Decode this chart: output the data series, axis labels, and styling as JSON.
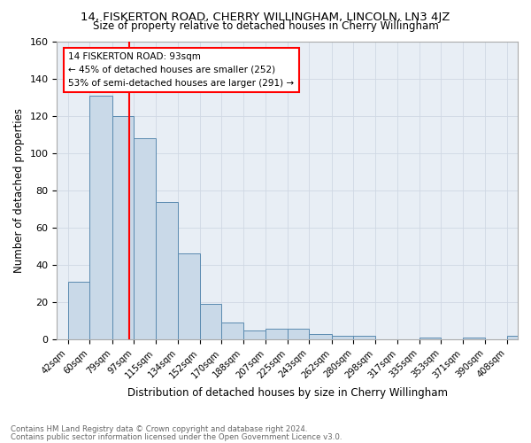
{
  "title": "14, FISKERTON ROAD, CHERRY WILLINGHAM, LINCOLN, LN3 4JZ",
  "subtitle": "Size of property relative to detached houses in Cherry Willingham",
  "xlabel": "Distribution of detached houses by size in Cherry Willingham",
  "ylabel": "Number of detached properties",
  "footnote1": "Contains HM Land Registry data © Crown copyright and database right 2024.",
  "footnote2": "Contains public sector information licensed under the Open Government Licence v3.0.",
  "bin_labels": [
    "42sqm",
    "60sqm",
    "79sqm",
    "97sqm",
    "115sqm",
    "134sqm",
    "152sqm",
    "170sqm",
    "188sqm",
    "207sqm",
    "225sqm",
    "243sqm",
    "262sqm",
    "280sqm",
    "298sqm",
    "317sqm",
    "335sqm",
    "353sqm",
    "371sqm",
    "390sqm",
    "408sqm"
  ],
  "bar_heights": [
    31,
    131,
    120,
    108,
    74,
    46,
    19,
    9,
    5,
    6,
    6,
    3,
    2,
    2,
    0,
    0,
    1,
    0,
    1,
    0,
    2
  ],
  "bar_color": "#c9d9e8",
  "bar_edge_color": "#5a8ab0",
  "grid_color": "#d0d8e4",
  "vline_color": "red",
  "annotation_text": "14 FISKERTON ROAD: 93sqm\n← 45% of detached houses are smaller (252)\n53% of semi-detached houses are larger (291) →",
  "annotation_box_color": "white",
  "annotation_box_edge": "red",
  "ylim": [
    0,
    160
  ],
  "bin_edges": [
    42,
    60,
    79,
    97,
    115,
    134,
    152,
    170,
    188,
    207,
    225,
    243,
    262,
    280,
    298,
    317,
    335,
    353,
    371,
    390,
    408
  ],
  "vline_x": 93,
  "bg_color": "#e8eef5"
}
